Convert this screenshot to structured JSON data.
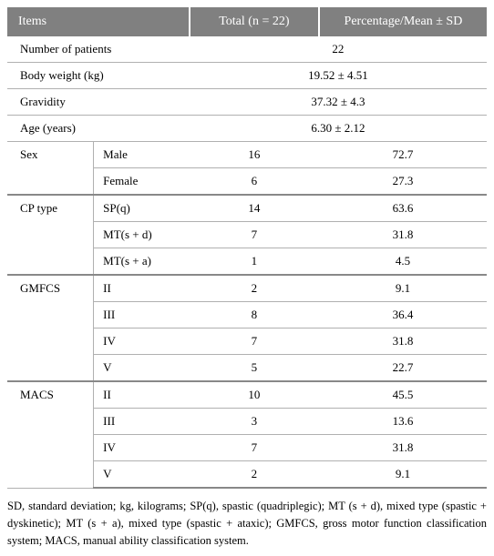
{
  "header": {
    "items": "Items",
    "total": "Total (n = 22)",
    "pct": "Percentage/Mean ± SD"
  },
  "simpleRows": [
    {
      "label": "Number of patients",
      "value": "22"
    },
    {
      "label": "Body weight (kg)",
      "value": "19.52 ± 4.51"
    },
    {
      "label": "Gravidity",
      "value": "37.32 ± 4.3"
    },
    {
      "label": "Age (years)",
      "value": "6.30 ± 2.12"
    }
  ],
  "groups": [
    {
      "name": "Sex",
      "rows": [
        {
          "sub": "Male",
          "total": "16",
          "pct": "72.7"
        },
        {
          "sub": "Female",
          "total": "6",
          "pct": "27.3"
        }
      ]
    },
    {
      "name": "CP type",
      "rows": [
        {
          "sub": "SP(q)",
          "total": "14",
          "pct": "63.6"
        },
        {
          "sub": "MT(s + d)",
          "total": "7",
          "pct": "31.8"
        },
        {
          "sub": "MT(s + a)",
          "total": "1",
          "pct": "4.5"
        }
      ]
    },
    {
      "name": "GMFCS",
      "rows": [
        {
          "sub": "II",
          "total": "2",
          "pct": "9.1"
        },
        {
          "sub": "III",
          "total": "8",
          "pct": "36.4"
        },
        {
          "sub": "IV",
          "total": "7",
          "pct": "31.8"
        },
        {
          "sub": "V",
          "total": "5",
          "pct": "22.7"
        }
      ]
    },
    {
      "name": "MACS",
      "rows": [
        {
          "sub": "II",
          "total": "10",
          "pct": "45.5"
        },
        {
          "sub": "III",
          "total": "3",
          "pct": "13.6"
        },
        {
          "sub": "IV",
          "total": "7",
          "pct": "31.8"
        },
        {
          "sub": "V",
          "total": "2",
          "pct": "9.1"
        }
      ]
    }
  ],
  "footnote": "SD, standard deviation; kg, kilograms; SP(q), spastic (quadriplegic); MT (s + d), mixed type (spastic + dyskinetic); MT (s + a), mixed type (spastic + ataxic); GMFCS, gross motor function classification system; MACS, manual ability classification system."
}
